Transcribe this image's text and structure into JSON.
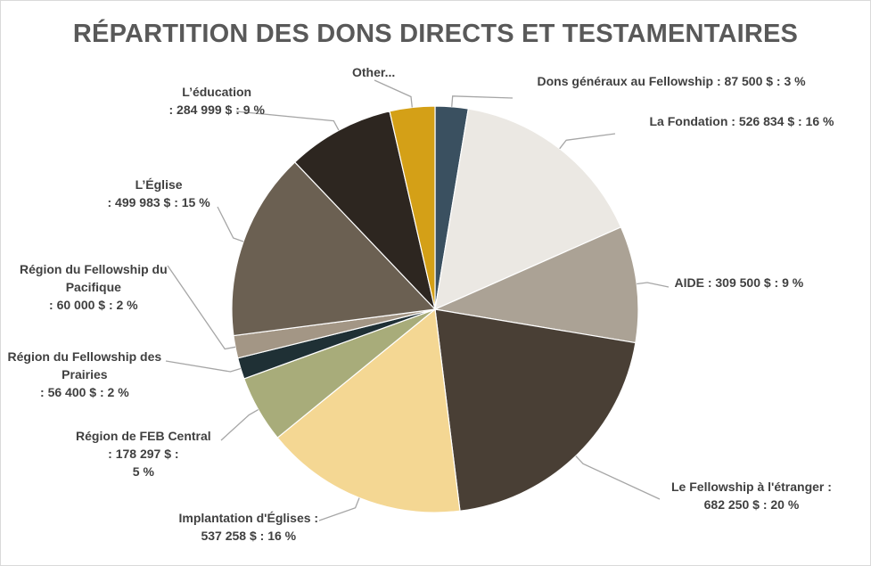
{
  "chart_data": {
    "type": "pie",
    "title": "RÉPARTITION DES DONS DIRECTS ET TESTAMENTAIRES",
    "slices": [
      {
        "name": "Dons généraux au Fellowship",
        "value": 87500,
        "label_lines": [
          "Dons généraux au Fellowship : 87 500 $ :  3 %"
        ],
        "color": "#3a5060"
      },
      {
        "name": "La Fondation",
        "value": 526834,
        "label_lines": [
          "La Fondation : 526 834 $ :  16 %"
        ],
        "color": "#ebe8e3"
      },
      {
        "name": "AIDE",
        "value": 309500,
        "label_lines": [
          "AIDE : 309 500 $ : 9 %"
        ],
        "color": "#aba295"
      },
      {
        "name": "Le Fellowship à l'étranger",
        "value": 682250,
        "label_lines": [
          "Le Fellowship à l'étranger :",
          "682 250 $ : 20 %"
        ],
        "color": "#493f35"
      },
      {
        "name": "Implantation d'Églises",
        "value": 537258,
        "label_lines": [
          "Implantation d'Églises :",
          "537 258 $ : 16 %"
        ],
        "color": "#f4d793"
      },
      {
        "name": "Région de FEB Central",
        "value": 178297,
        "label_lines": [
          "Région de FEB Central",
          ": 178 297 $ :",
          "5 %"
        ],
        "color": "#a8ac7a"
      },
      {
        "name": "Région du Fellowship des Prairies",
        "value": 56400,
        "label_lines": [
          "Région du Fellowship des",
          "Prairies",
          ": 56 400 $ : 2 %"
        ],
        "color": "#1f3035"
      },
      {
        "name": "Région du Fellowship du Pacifique",
        "value": 60000,
        "label_lines": [
          "Région du Fellowship du",
          "Pacifique",
          ": 60 000 $ : 2 %"
        ],
        "color": "#a39685"
      },
      {
        "name": "L’Église",
        "value": 499983,
        "label_lines": [
          "L’Église",
          ": 499 983 $ : 15 %"
        ],
        "color": "#6b6052"
      },
      {
        "name": "L’éducation",
        "value": 284999,
        "label_lines": [
          "L’éducation",
          ": 284 999 $ : 9 %"
        ],
        "color": "#2d2620"
      },
      {
        "name": "Other...",
        "value": 120000,
        "label_lines": [
          "Other..."
        ],
        "color": "#d4a017"
      }
    ],
    "legend": "none",
    "grid": false
  }
}
